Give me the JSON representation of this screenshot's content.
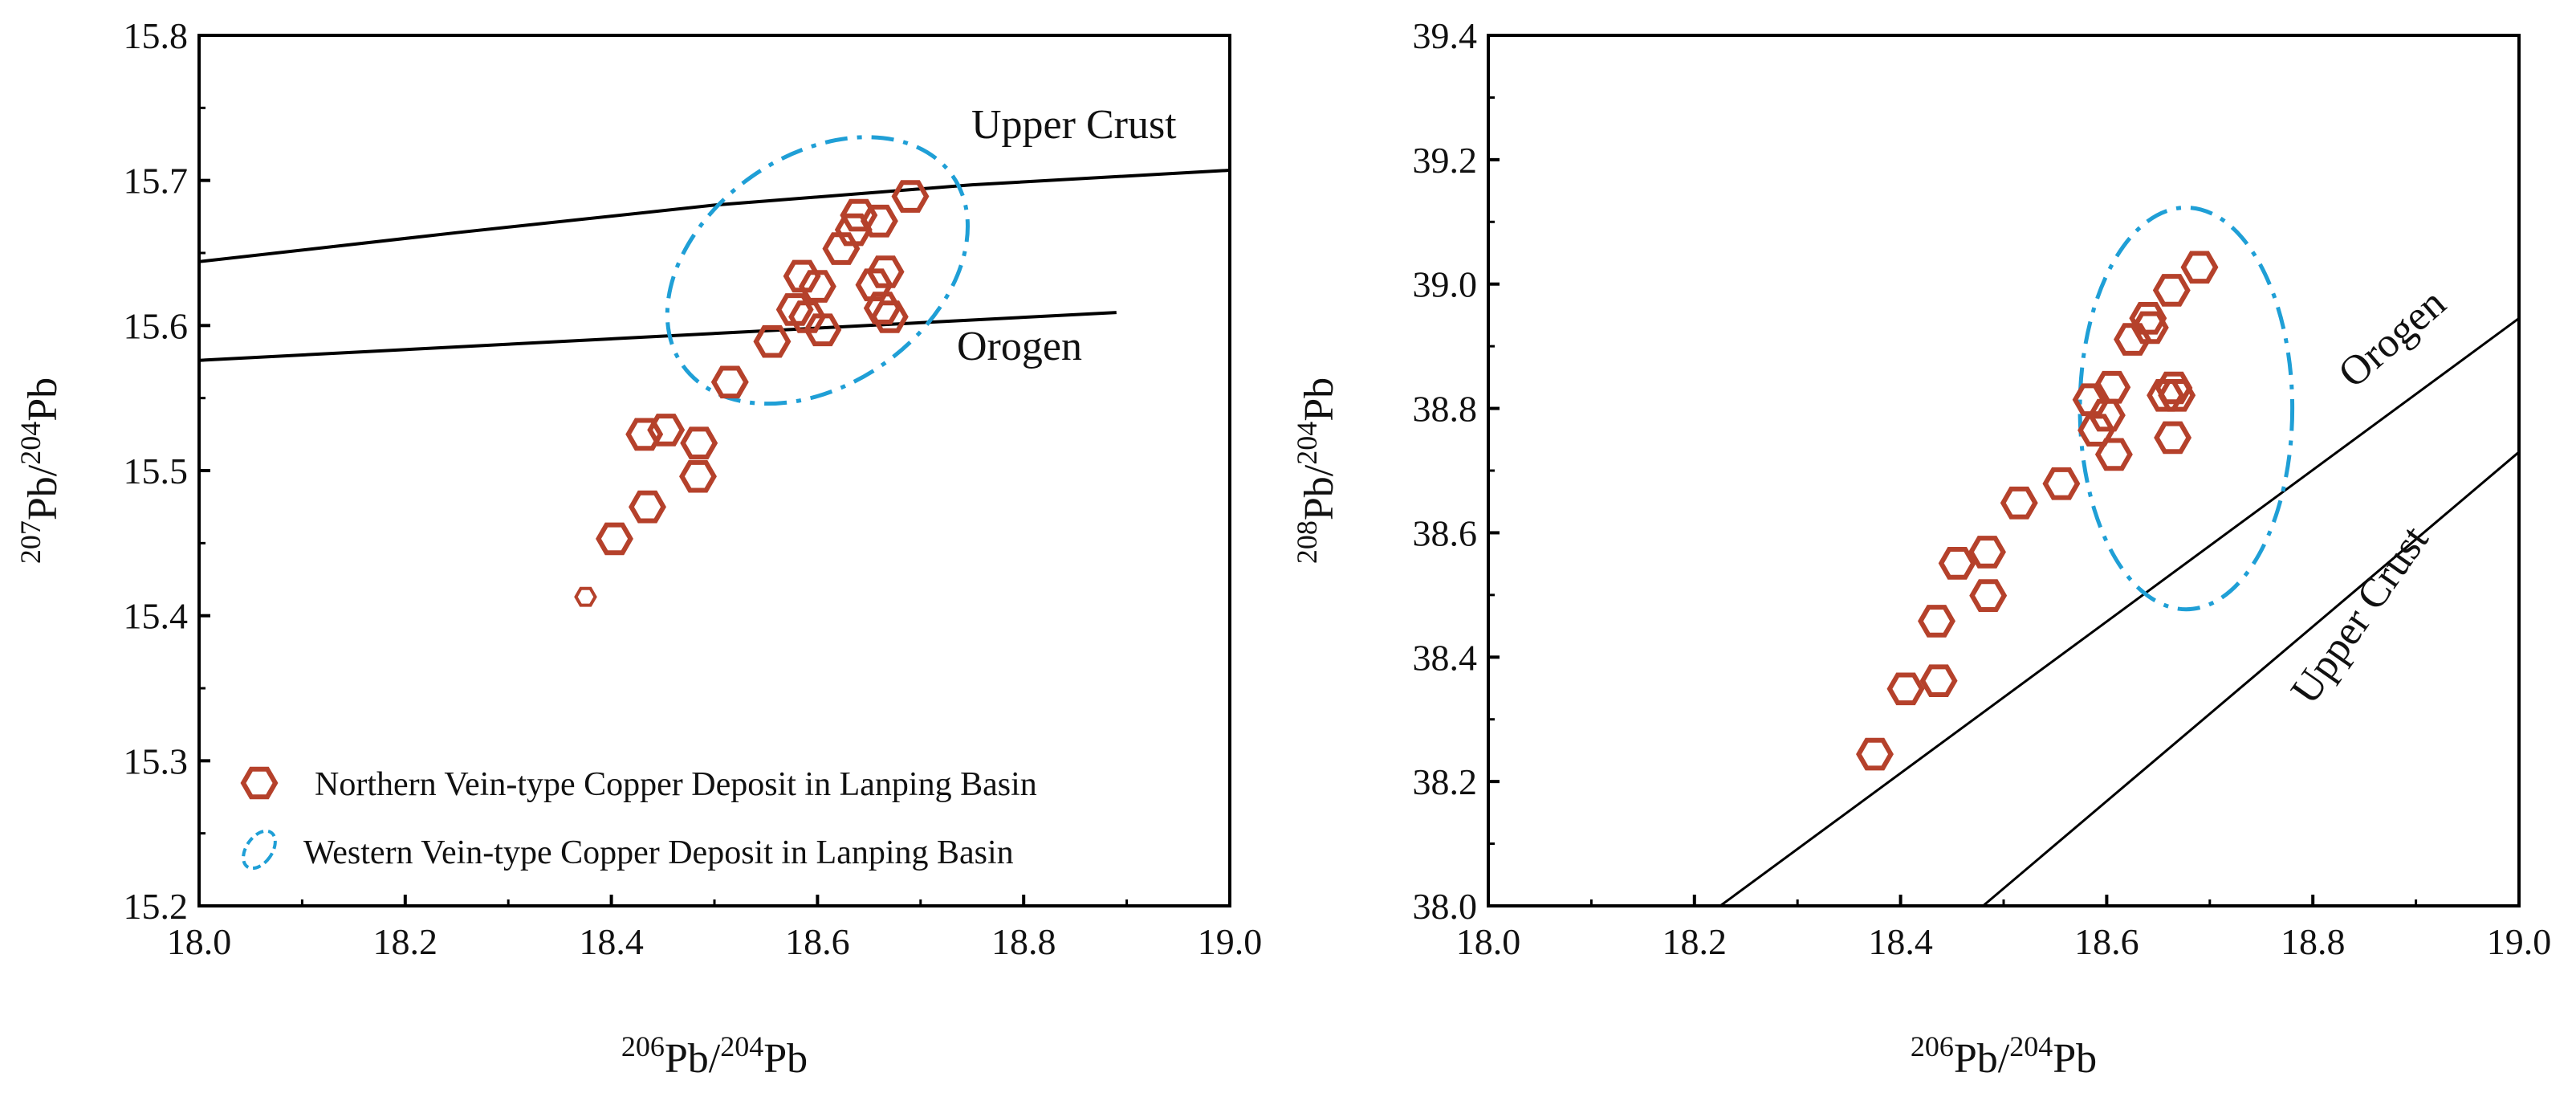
{
  "chart_data": [
    {
      "type": "scatter",
      "xlabel": {
        "sup1": "206",
        "base1": "Pb/",
        "sup2": "204",
        "base2": "Pb"
      },
      "ylabel": {
        "sup1": "207",
        "base1": "Pb/",
        "sup2": "204",
        "base2": "Pb"
      },
      "xlim": [
        18.0,
        19.0
      ],
      "ylim": [
        15.2,
        15.8
      ],
      "xticks": [
        "18.0",
        "18.2",
        "18.4",
        "18.6",
        "18.8",
        "19.0"
      ],
      "yticks": [
        "15.2",
        "15.3",
        "15.4",
        "15.5",
        "15.6",
        "15.7",
        "15.8"
      ],
      "series": [
        {
          "name": "Northern Vein-type Copper Deposit in Lanping Basin",
          "marker": "hexagon",
          "color": "#b5412b",
          "points": [
            [
              18.375,
              15.413
            ],
            [
              18.403,
              15.453
            ],
            [
              18.435,
              15.475
            ],
            [
              18.432,
              15.525
            ],
            [
              18.453,
              15.528
            ],
            [
              18.485,
              15.519
            ],
            [
              18.484,
              15.496
            ],
            [
              18.515,
              15.561
            ],
            [
              18.556,
              15.589
            ],
            [
              18.578,
              15.611
            ],
            [
              18.585,
              15.634
            ],
            [
              18.59,
              15.606
            ],
            [
              18.6,
              15.627
            ],
            [
              18.605,
              15.597
            ],
            [
              18.623,
              15.653
            ],
            [
              18.635,
              15.666
            ],
            [
              18.64,
              15.676
            ],
            [
              18.66,
              15.672
            ],
            [
              18.69,
              15.689
            ],
            [
              18.655,
              15.628
            ],
            [
              18.663,
              15.612
            ],
            [
              18.666,
              15.637
            ],
            [
              18.67,
              15.606
            ]
          ]
        }
      ],
      "curves": [
        {
          "name": "Upper Crust",
          "points": [
            [
              18.0,
              15.644
            ],
            [
              18.25,
              15.664
            ],
            [
              18.5,
              15.683
            ],
            [
              18.75,
              15.697
            ],
            [
              19.0,
              15.707
            ]
          ]
        },
        {
          "name": "Orogen",
          "points": [
            [
              18.0,
              15.576
            ],
            [
              18.89,
              15.609
            ]
          ]
        }
      ],
      "region": {
        "name": "Western Vein-type Copper Deposit in Lanping Basin",
        "color": "#1f9fd6",
        "center": [
          18.6,
          15.638
        ],
        "radius_x": 0.16,
        "radius_y": 0.079,
        "tilt_deg": -35
      },
      "legend": [
        {
          "label": "Northern Vein-type Copper Deposit in Lanping Basin",
          "symbol": "hexagon"
        },
        {
          "label": "Western Vein-type Copper Deposit in Lanping Basin",
          "symbol": "dashed-ellipse"
        }
      ],
      "legend_position": "bottom-left"
    },
    {
      "type": "scatter",
      "xlabel": {
        "sup1": "206",
        "base1": "Pb/",
        "sup2": "204",
        "base2": "Pb"
      },
      "ylabel": {
        "sup1": "208",
        "base1": "Pb/",
        "sup2": "204",
        "base2": "Pb"
      },
      "xlim": [
        18.0,
        19.0
      ],
      "ylim": [
        38.0,
        39.4
      ],
      "xticks": [
        "18.0",
        "18.2",
        "18.4",
        "18.6",
        "18.8",
        "19.0"
      ],
      "yticks": [
        "38.0",
        "38.2",
        "38.4",
        "38.6",
        "38.8",
        "39.0",
        "39.2",
        "39.4"
      ],
      "series": [
        {
          "name": "Northern Vein-type Copper Deposit in Lanping Basin",
          "marker": "hexagon",
          "color": "#b5412b",
          "points": [
            [
              18.375,
              38.244
            ],
            [
              18.405,
              38.349
            ],
            [
              18.437,
              38.362
            ],
            [
              18.435,
              38.458
            ],
            [
              18.455,
              38.551
            ],
            [
              18.484,
              38.569
            ],
            [
              18.485,
              38.499
            ],
            [
              18.515,
              38.648
            ],
            [
              18.556,
              38.679
            ],
            [
              18.59,
              38.765
            ],
            [
              18.585,
              38.814
            ],
            [
              18.6,
              38.789
            ],
            [
              18.605,
              38.834
            ],
            [
              18.607,
              38.726
            ],
            [
              18.625,
              38.911
            ],
            [
              18.64,
              38.945
            ],
            [
              18.642,
              38.93
            ],
            [
              18.663,
              38.99
            ],
            [
              18.69,
              39.027
            ],
            [
              18.657,
              38.821
            ],
            [
              18.665,
              38.833
            ],
            [
              18.668,
              38.821
            ],
            [
              18.664,
              38.753
            ]
          ]
        }
      ],
      "curves": [
        {
          "name": "Orogen",
          "points": [
            [
              18.225,
              38.0
            ],
            [
              19.0,
              38.945
            ]
          ]
        },
        {
          "name": "Upper Crust",
          "points": [
            [
              18.48,
              38.0
            ],
            [
              19.0,
              38.73
            ]
          ]
        }
      ],
      "region": {
        "name": "Western Vein-type Copper Deposit in Lanping Basin",
        "color": "#1f9fd6",
        "center": [
          18.677,
          38.8
        ],
        "radius_x": 0.103,
        "radius_y": 0.323,
        "tilt_deg": 0
      }
    }
  ]
}
